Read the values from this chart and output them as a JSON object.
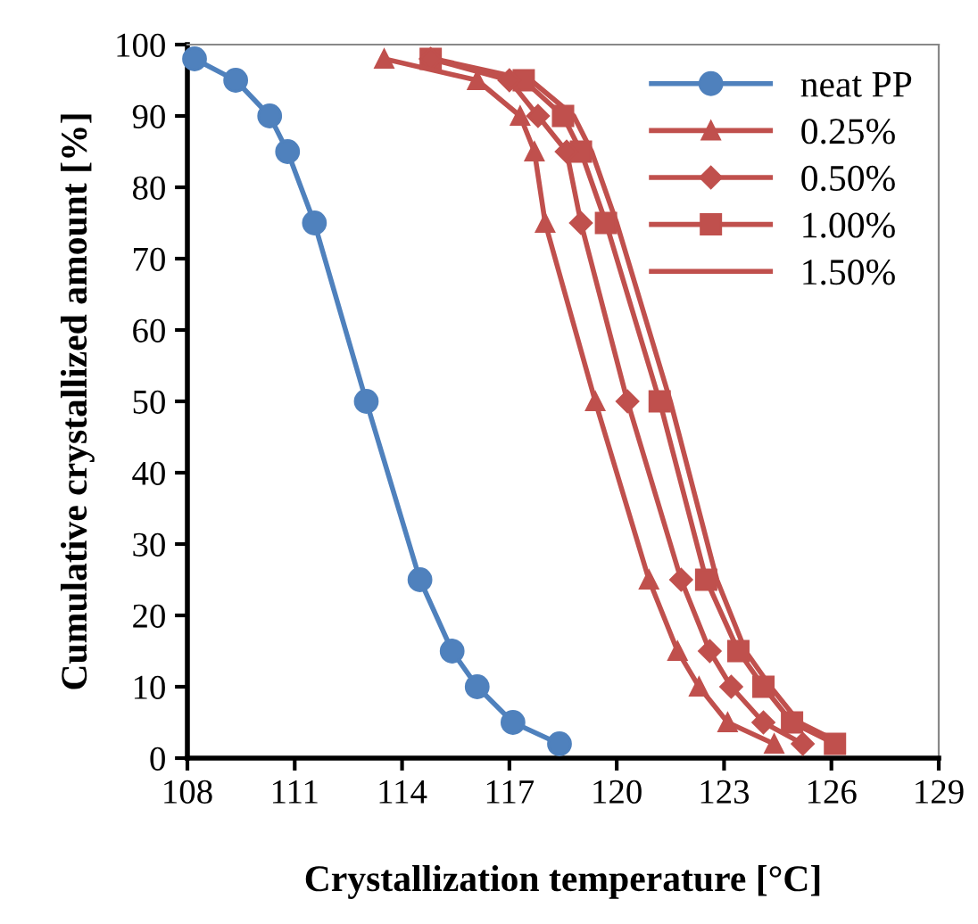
{
  "chart_data": {
    "type": "line",
    "xlabel": "Crystallization temperature [°C]",
    "ylabel": "Cumulative crystallized amount [%]",
    "xlim": [
      108,
      129
    ],
    "xticks": [
      108,
      111,
      114,
      117,
      120,
      123,
      126,
      129
    ],
    "ylim": [
      0,
      100
    ],
    "yticks": [
      0,
      10,
      20,
      30,
      40,
      50,
      60,
      70,
      80,
      90,
      100
    ],
    "grid": false,
    "legend": "top right",
    "series": [
      {
        "name": "neat PP",
        "color": "#4f81bd",
        "marker": "circle",
        "x": [
          108.2,
          109.35,
          110.3,
          110.8,
          111.55,
          113.0,
          114.5,
          115.4,
          116.1,
          117.1,
          118.4
        ],
        "values": [
          98,
          95,
          90,
          85,
          75,
          50,
          25,
          15,
          10,
          5,
          2
        ]
      },
      {
        "name": "0.25%",
        "color": "#c0504d",
        "marker": "triangle",
        "x": [
          113.5,
          116.1,
          117.3,
          117.7,
          118.0,
          119.4,
          120.9,
          121.7,
          122.3,
          123.1,
          124.4
        ],
        "values": [
          98,
          95,
          90,
          85,
          75,
          50,
          25,
          15,
          10,
          5,
          2
        ]
      },
      {
        "name": "0.50%",
        "color": "#c0504d",
        "marker": "diamond",
        "x": [
          114.8,
          117.0,
          117.8,
          118.6,
          119.0,
          120.3,
          121.8,
          122.6,
          123.2,
          124.1,
          125.2
        ],
        "values": [
          98,
          95,
          90,
          85,
          75,
          50,
          25,
          15,
          10,
          5,
          2
        ]
      },
      {
        "name": "1.00%",
        "color": "#c0504d",
        "marker": "square",
        "x": [
          114.8,
          117.4,
          118.5,
          119.0,
          119.7,
          121.2,
          122.5,
          123.4,
          124.1,
          124.9,
          126.1
        ],
        "values": [
          98,
          95,
          90,
          85,
          75,
          50,
          25,
          15,
          10,
          5,
          2
        ]
      },
      {
        "name": "1.50%",
        "color": "#c0504d",
        "marker": "none",
        "x": [
          114.9,
          117.6,
          118.8,
          119.3,
          120.0,
          121.5,
          122.8,
          123.6,
          124.3,
          125.1,
          126.3
        ],
        "values": [
          98,
          95,
          90,
          85,
          75,
          50,
          25,
          15,
          10,
          5,
          2
        ]
      }
    ]
  }
}
